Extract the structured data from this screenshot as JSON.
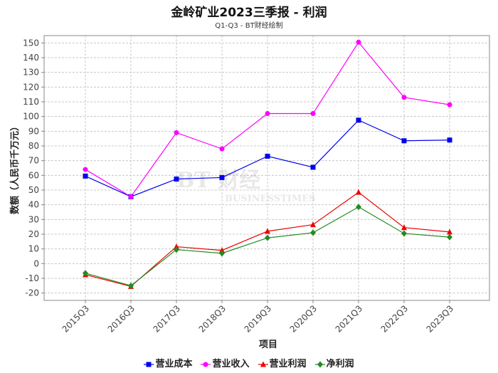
{
  "title": "金岭矿业2023三季报 - 利润",
  "subtitle": "Q1-Q3 - BT财经绘制",
  "colors": {
    "grid": "#c8c8c8",
    "plot_bg": "#ffffff",
    "axis": "#888888"
  },
  "chart_data": {
    "type": "line",
    "xlabel": "项目",
    "ylabel": "数额（人民币千万元）",
    "ylim": [
      -25,
      155
    ],
    "yticks": [
      -20,
      -10,
      0,
      10,
      20,
      30,
      40,
      50,
      60,
      70,
      80,
      90,
      100,
      110,
      120,
      130,
      140,
      150
    ],
    "categories": [
      "2015Q3",
      "2016Q3",
      "2017Q3",
      "2018Q3",
      "2019Q3",
      "2020Q3",
      "2021Q3",
      "2022Q3",
      "2023Q3"
    ],
    "grid": true,
    "legend_position": "bottom",
    "series": [
      {
        "name": "营业成本",
        "color": "#0000ee",
        "marker": "square",
        "values": [
          59.5,
          45.5,
          57.5,
          58.5,
          73.0,
          65.5,
          97.5,
          83.5,
          84.0
        ]
      },
      {
        "name": "营业收入",
        "color": "#ff00ff",
        "marker": "circle",
        "values": [
          64.0,
          45.5,
          89.0,
          78.0,
          102.0,
          102.0,
          150.5,
          113.0,
          108.0
        ]
      },
      {
        "name": "营业利润",
        "color": "#ee0000",
        "marker": "triangle",
        "values": [
          -7.5,
          -15.5,
          11.5,
          9.0,
          22.0,
          26.5,
          48.5,
          24.5,
          21.5
        ]
      },
      {
        "name": "净利润",
        "color": "#228b22",
        "marker": "diamond",
        "values": [
          -6.5,
          -15.0,
          9.5,
          7.0,
          17.5,
          21.0,
          38.5,
          20.5,
          18.0
        ]
      }
    ]
  }
}
